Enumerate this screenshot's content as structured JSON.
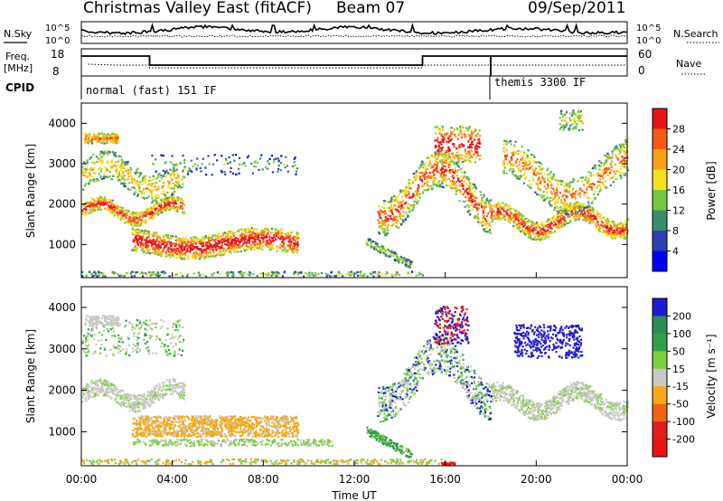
{
  "header": {
    "title": "Christmas Valley East (fitACF)",
    "beam": "Beam 07",
    "date": "09/Sep/2011"
  },
  "noise_panel": {
    "left_label": "N.Sky",
    "right_label": "N.Search",
    "left_ticks": [
      "10^5",
      "10^0"
    ],
    "right_ticks": [
      "10^5",
      "10^0"
    ]
  },
  "freq_panel": {
    "left_label": "Freq.",
    "left_unit": "[MHz]",
    "right_label": "Nave",
    "left_ticks": [
      "18",
      "8"
    ],
    "right_ticks": [
      "60",
      "0"
    ]
  },
  "cpid_panel": {
    "label": "CPID",
    "segments": [
      {
        "start_h": 0,
        "end_h": 18,
        "text": "normal (fast) 151 IF"
      },
      {
        "start_h": 18,
        "end_h": 24,
        "text": "themis 3300 IF"
      }
    ]
  },
  "chart_data": [
    {
      "type": "heatmap",
      "name": "Power",
      "ylabel": "Slant Range [km]",
      "ylim": [
        180,
        4500
      ],
      "yticks": [
        1000,
        2000,
        3000,
        4000
      ],
      "colorbar_label": "Power [dB]",
      "colorbar_ticks": [
        "4",
        "8",
        "12",
        "16",
        "20",
        "24",
        "28"
      ],
      "colors": [
        "#0000ff",
        "#2f3fb0",
        "#3b8c6f",
        "#77c642",
        "#f3e021",
        "#f7a11a",
        "#f45a14",
        "#e8141b"
      ]
    },
    {
      "type": "heatmap",
      "name": "Velocity",
      "ylabel": "Slant Range [km]",
      "ylim": [
        180,
        4500
      ],
      "yticks": [
        1000,
        2000,
        3000,
        4000
      ],
      "colorbar_label": "Velocity [m s⁻¹]",
      "colorbar_ticks": [
        "200",
        "100",
        "50",
        "15",
        "-15",
        "-50",
        "-100",
        "-200"
      ],
      "colors": [
        "#1e1ad2",
        "#2e8a57",
        "#2fa04c",
        "#7fd040",
        "#c8c8c4",
        "#f5a81a",
        "#ef6419",
        "#e01e1e",
        "#e81414"
      ]
    }
  ],
  "time_axis": {
    "label": "Time UT",
    "ticks": [
      "00:00",
      "04:00",
      "08:00",
      "12:00",
      "16:00",
      "20:00",
      "00:00"
    ]
  }
}
